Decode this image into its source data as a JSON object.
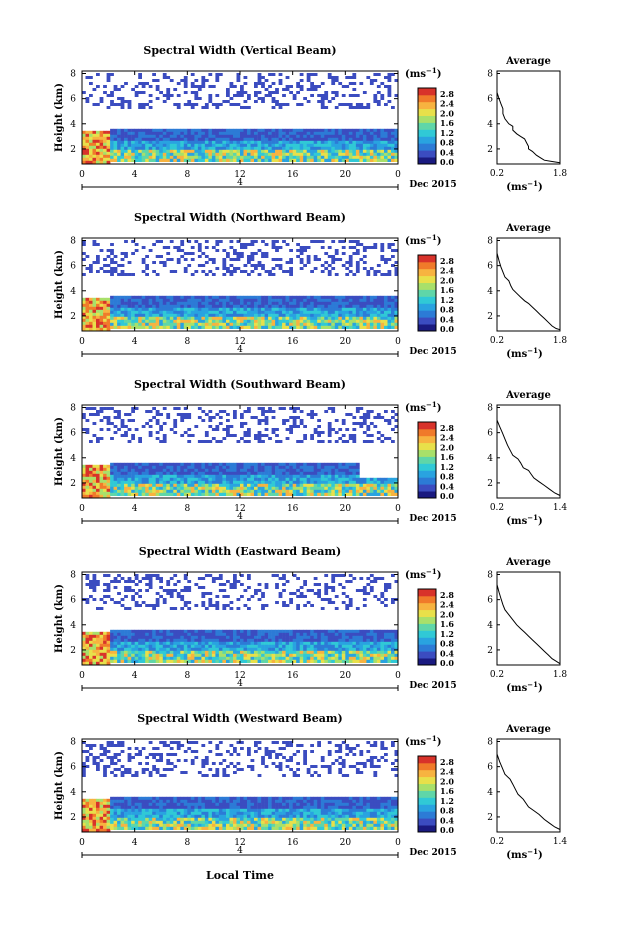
{
  "figure": {
    "xaxis_title": "Local Time",
    "colorbar_unit": "(ms",
    "colorbar_unit_exp": "−1",
    "colorbar_unit_close": ")",
    "avg_xunit": "(ms",
    "avg_xunit_exp": "−1",
    "avg_xunit_close": ")",
    "colorbar_ticks": [
      "2.8",
      "2.4",
      "2.0",
      "1.6",
      "1.2",
      "0.8",
      "0.4",
      "0.0"
    ],
    "colormap": [
      "#1a1a80",
      "#3b4cc0",
      "#2c7bd6",
      "#29a3e0",
      "#30c9d6",
      "#5fd6a8",
      "#a8e06a",
      "#e8e04a",
      "#f7b340",
      "#f07a2a",
      "#d8322a"
    ]
  },
  "chart_data": [
    {
      "type": "heatmap",
      "title": "Spectral Width (Vertical Beam)",
      "ylabel": "Height (km)",
      "x_ticks": [
        "0",
        "4",
        "8",
        "12",
        "16",
        "20",
        "0"
      ],
      "y_ticks": [
        "2",
        "4",
        "6",
        "8"
      ],
      "date_label": "Dec 2015",
      "day_marker": "4",
      "xlim": [
        0,
        24
      ],
      "ylim": [
        0.8,
        8.2
      ],
      "band_top_km": 3.6,
      "profile": {
        "title": "Average",
        "xlabel": "(ms⁻¹)",
        "x_ticks": [
          "0.2",
          "1.8"
        ],
        "y_ticks": [
          "2",
          "4",
          "6",
          "8"
        ],
        "x": [
          0.2,
          0.2,
          0.25,
          0.3,
          0.35,
          0.35,
          0.4,
          0.5,
          0.6,
          0.6,
          0.7,
          0.8,
          0.9,
          0.95,
          1.0,
          1.0,
          1.1,
          1.2,
          1.3,
          1.4,
          1.6,
          1.8
        ],
        "y": [
          7.2,
          6.5,
          6.0,
          5.6,
          5.2,
          4.8,
          4.4,
          4.0,
          3.8,
          3.5,
          3.2,
          3.0,
          2.8,
          2.5,
          2.2,
          2.0,
          1.8,
          1.5,
          1.3,
          1.1,
          1.0,
          0.9
        ]
      }
    },
    {
      "type": "heatmap",
      "title": "Spectral Width (Northward Beam)",
      "ylabel": "Height (km)",
      "x_ticks": [
        "0",
        "4",
        "8",
        "12",
        "16",
        "20",
        "0"
      ],
      "y_ticks": [
        "2",
        "4",
        "6",
        "8"
      ],
      "date_label": "Dec 2015",
      "day_marker": "4",
      "xlim": [
        0,
        24
      ],
      "ylim": [
        0.8,
        8.2
      ],
      "band_top_km": 3.6,
      "profile": {
        "title": "Average",
        "xlabel": "(ms⁻¹)",
        "x_ticks": [
          "0.2",
          "1.8"
        ],
        "y_ticks": [
          "2",
          "4",
          "6",
          "8"
        ],
        "x": [
          0.2,
          0.25,
          0.3,
          0.35,
          0.4,
          0.5,
          0.55,
          0.6,
          0.7,
          0.8,
          0.9,
          1.0,
          1.1,
          1.2,
          1.3,
          1.4,
          1.5,
          1.6,
          1.7,
          1.8
        ],
        "y": [
          7.0,
          6.4,
          5.9,
          5.5,
          5.1,
          4.8,
          4.4,
          4.1,
          3.8,
          3.5,
          3.2,
          3.0,
          2.7,
          2.4,
          2.1,
          1.8,
          1.5,
          1.2,
          1.0,
          0.9
        ]
      }
    },
    {
      "type": "heatmap",
      "title": "Spectral Width (Southward Beam)",
      "ylabel": "Height (km)",
      "x_ticks": [
        "0",
        "4",
        "8",
        "12",
        "16",
        "20",
        "0"
      ],
      "y_ticks": [
        "2",
        "4",
        "6",
        "8"
      ],
      "date_label": "Dec 2015",
      "day_marker": "4",
      "xlim": [
        0,
        24
      ],
      "ylim": [
        0.8,
        8.2
      ],
      "band_top_km": 3.6,
      "profile": {
        "title": "Average",
        "xlabel": "(ms⁻¹)",
        "x_ticks": [
          "0.2",
          "1.4"
        ],
        "y_ticks": [
          "2",
          "4",
          "6",
          "8"
        ],
        "x": [
          0.2,
          0.25,
          0.3,
          0.35,
          0.4,
          0.45,
          0.5,
          0.6,
          0.65,
          0.7,
          0.8,
          0.85,
          0.9,
          1.0,
          1.1,
          1.2,
          1.3,
          1.4
        ],
        "y": [
          7.0,
          6.5,
          6.0,
          5.5,
          5.0,
          4.6,
          4.2,
          3.9,
          3.6,
          3.2,
          3.0,
          2.7,
          2.4,
          2.1,
          1.8,
          1.5,
          1.2,
          1.0
        ]
      }
    },
    {
      "type": "heatmap",
      "title": "Spectral Width (Eastward Beam)",
      "ylabel": "Height (km)",
      "x_ticks": [
        "0",
        "4",
        "8",
        "12",
        "16",
        "20",
        "0"
      ],
      "y_ticks": [
        "2",
        "4",
        "6",
        "8"
      ],
      "date_label": "Dec 2015",
      "day_marker": "4",
      "xlim": [
        0,
        24
      ],
      "ylim": [
        0.8,
        8.2
      ],
      "band_top_km": 3.6,
      "profile": {
        "title": "Average",
        "xlabel": "(ms⁻¹)",
        "x_ticks": [
          "0.2",
          "1.8"
        ],
        "y_ticks": [
          "2",
          "4",
          "6",
          "8"
        ],
        "x": [
          0.2,
          0.25,
          0.3,
          0.35,
          0.4,
          0.5,
          0.6,
          0.7,
          0.8,
          0.9,
          1.0,
          1.1,
          1.2,
          1.3,
          1.4,
          1.5,
          1.6,
          1.7,
          1.8
        ],
        "y": [
          7.2,
          6.6,
          6.1,
          5.6,
          5.2,
          4.8,
          4.4,
          4.0,
          3.7,
          3.4,
          3.1,
          2.8,
          2.5,
          2.2,
          1.9,
          1.6,
          1.3,
          1.1,
          0.9
        ]
      }
    },
    {
      "type": "heatmap",
      "title": "Spectral Width (Westward Beam)",
      "ylabel": "Height (km)",
      "x_ticks": [
        "0",
        "4",
        "8",
        "12",
        "16",
        "20",
        "0"
      ],
      "y_ticks": [
        "2",
        "4",
        "6",
        "8"
      ],
      "date_label": "Dec 2015",
      "day_marker": "4",
      "xlim": [
        0,
        24
      ],
      "ylim": [
        0.8,
        8.2
      ],
      "band_top_km": 3.6,
      "profile": {
        "title": "Average",
        "xlabel": "(ms⁻¹)",
        "x_ticks": [
          "0.2",
          "1.4"
        ],
        "y_ticks": [
          "2",
          "4",
          "6",
          "8"
        ],
        "x": [
          0.2,
          0.25,
          0.3,
          0.35,
          0.45,
          0.5,
          0.55,
          0.6,
          0.7,
          0.75,
          0.8,
          0.9,
          1.0,
          1.1,
          1.2,
          1.3,
          1.4
        ],
        "y": [
          7.0,
          6.4,
          5.9,
          5.4,
          5.0,
          4.6,
          4.2,
          3.8,
          3.4,
          3.1,
          2.8,
          2.5,
          2.2,
          1.8,
          1.5,
          1.2,
          1.0
        ]
      }
    }
  ]
}
